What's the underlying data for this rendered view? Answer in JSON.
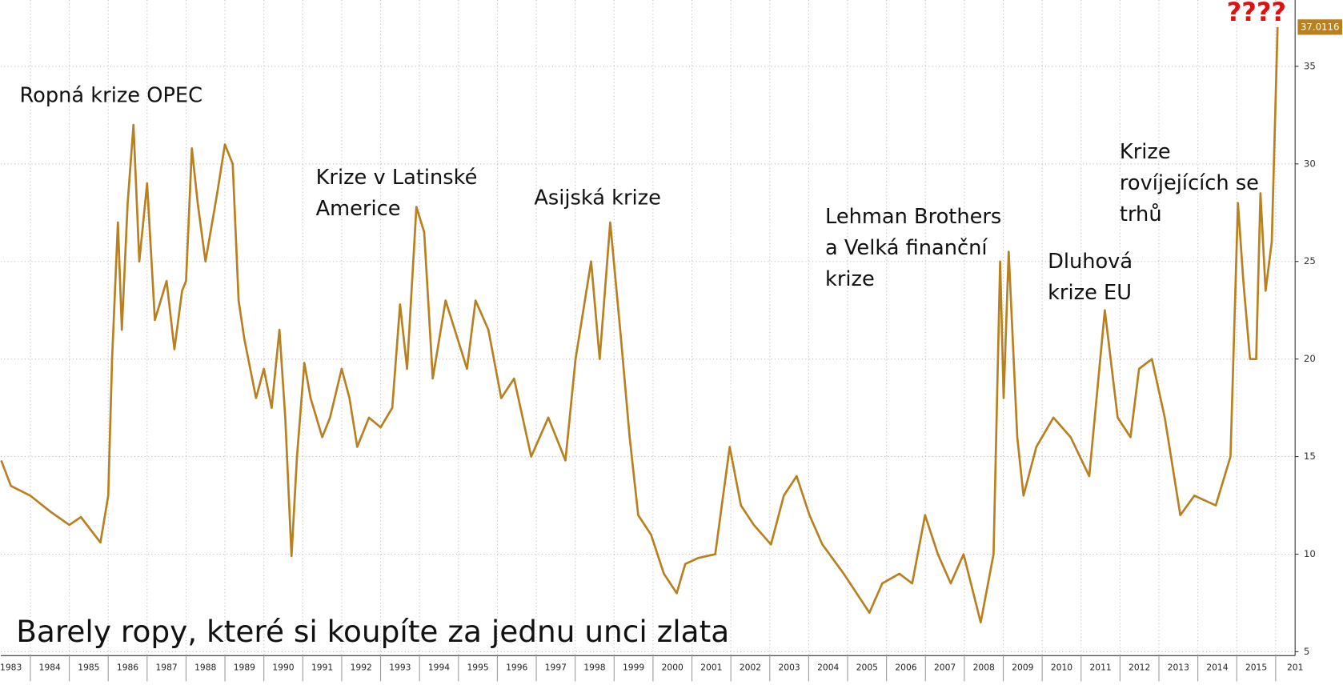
{
  "chart_data": {
    "type": "line",
    "title": "Barely ropy, které si koupíte za jednu unci zlata",
    "annotations": [
      [
        "Ropná krize OPEC"
      ],
      [
        "Krize v Latinské",
        "Americe"
      ],
      [
        "Asijská krize"
      ],
      [
        "Lehman Brothers",
        "a Velká finanční",
        "krize"
      ],
      [
        "Dluhová",
        "krize EU"
      ],
      [
        "Krize",
        "rovíjejících se",
        "trhů"
      ],
      [
        "????"
      ]
    ],
    "color": "#b8801f",
    "x": [
      1983.25,
      1983.5,
      1984.0,
      1984.5,
      1985.0,
      1985.3,
      1985.8,
      1986.0,
      1986.1,
      1986.25,
      1986.35,
      1986.5,
      1986.65,
      1986.8,
      1987.0,
      1987.2,
      1987.5,
      1987.7,
      1987.9,
      1988.0,
      1988.15,
      1988.3,
      1988.5,
      1988.8,
      1989.0,
      1989.2,
      1989.35,
      1989.5,
      1989.8,
      1990.0,
      1990.2,
      1990.4,
      1990.55,
      1990.71,
      1990.85,
      1991.04,
      1991.2,
      1991.5,
      1991.7,
      1992.0,
      1992.2,
      1992.4,
      1992.7,
      1993.0,
      1993.3,
      1993.5,
      1993.68,
      1993.92,
      1994.12,
      1994.34,
      1994.67,
      1995.22,
      1995.44,
      1995.77,
      1996.1,
      1996.43,
      1996.87,
      1997.31,
      1997.75,
      1998.01,
      1998.41,
      1998.63,
      1998.9,
      1999.18,
      1999.4,
      1999.62,
      1999.95,
      2000.28,
      2000.61,
      2000.83,
      2001.16,
      2001.6,
      2001.97,
      2002.26,
      2002.59,
      2003.03,
      2003.36,
      2003.69,
      2004.02,
      2004.35,
      2004.9,
      2005.56,
      2005.89,
      2006.33,
      2006.66,
      2006.99,
      2007.32,
      2007.65,
      2007.98,
      2008.42,
      2008.75,
      2008.92,
      2009.01,
      2009.14,
      2009.36,
      2009.52,
      2009.85,
      2010.29,
      2010.73,
      2011.21,
      2011.61,
      2011.94,
      2012.27,
      2012.49,
      2012.82,
      2013.15,
      2013.55,
      2013.91,
      2014.46,
      2014.84,
      2015.03,
      2015.17,
      2015.34,
      2015.5,
      2015.61,
      2015.74,
      2015.9,
      2015.96,
      2016.05
    ],
    "values": [
      14.8,
      13.5,
      13,
      12.2,
      11.5,
      11.9,
      10.6,
      13,
      20,
      27,
      21.5,
      28,
      32,
      25,
      29,
      22,
      24,
      20.5,
      23.5,
      24,
      30.8,
      28,
      25,
      28.5,
      31,
      30,
      23,
      21,
      18,
      19.5,
      17.5,
      21.5,
      17,
      9.9,
      15,
      19.8,
      18,
      16,
      17,
      19.5,
      18,
      15.5,
      17,
      16.5,
      17.5,
      22.8,
      19.5,
      27.8,
      26.5,
      19,
      23,
      19.5,
      23,
      21.5,
      18,
      19,
      15,
      17,
      14.8,
      20,
      25,
      20,
      27,
      21,
      16,
      12,
      11,
      9,
      8,
      9.5,
      9.8,
      10,
      15.5,
      12.5,
      11.5,
      10.5,
      13,
      14,
      12,
      10.5,
      9,
      7,
      8.5,
      9,
      8.5,
      12,
      10,
      8.5,
      10,
      6.5,
      10,
      25,
      18,
      25.5,
      16,
      13,
      15.5,
      17,
      16,
      14,
      22.5,
      17,
      16,
      19.5,
      20,
      17,
      12,
      13,
      12.5,
      15,
      28,
      24,
      20,
      20,
      28.5,
      23.5,
      26,
      30.5,
      37.0116
    ],
    "xlim": [
      1983.24,
      2016.5
    ],
    "xticks": [
      1983,
      1984,
      1985,
      1986,
      1987,
      1988,
      1989,
      1990,
      1991,
      1992,
      1993,
      1994,
      1995,
      1996,
      1997,
      1998,
      1999,
      2000,
      2001,
      2002,
      2003,
      2004,
      2005,
      2006,
      2007,
      2008,
      2009,
      2010,
      2011,
      2012,
      2013,
      2014,
      2015,
      {
        "value": 2016,
        "label": "201"
      }
    ],
    "ylim": [
      4.8,
      38.4
    ],
    "yticks": [
      5,
      10,
      15,
      20,
      25,
      30,
      35
    ],
    "grid": true
  }
}
